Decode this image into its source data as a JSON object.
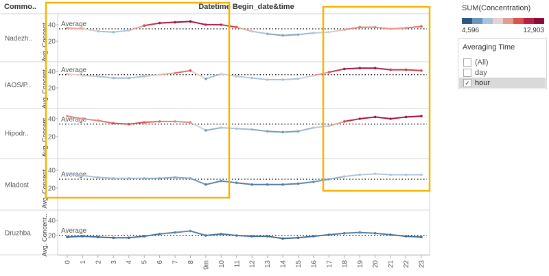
{
  "header": {
    "row_dim": "Commo..",
    "col_title": "Datetime Begin_date&time",
    "y_axis_title": "Avg. Concent..",
    "reference_label": "Average"
  },
  "x_tick_labels": [
    "0",
    "1",
    "2",
    "3",
    "4",
    "5",
    "6",
    "7",
    "8",
    "9m",
    "10",
    "11",
    "12",
    "13",
    "14",
    "15",
    "16",
    "17",
    "18",
    "19",
    "20",
    "21",
    "22",
    "23"
  ],
  "legend": {
    "title": "SUM(Concentration)",
    "min_label": "4,596",
    "max_label": "12,903",
    "ramp_colors": [
      "#2a5783",
      "#6b95b8",
      "#a9c3d9",
      "#e6d2cf",
      "#e59a8f",
      "#e04f4b",
      "#b81f45",
      "#8b0b38"
    ]
  },
  "filter": {
    "title": "Averaging Time",
    "options": [
      {
        "label": "(All)",
        "checked": false
      },
      {
        "label": "day",
        "checked": false
      },
      {
        "label": "hour",
        "checked": true
      }
    ]
  },
  "chart_data": {
    "type": "line",
    "x_label": "Datetime Begin_date&time",
    "y_label": "Avg. Concent..",
    "categories": [
      "0",
      "1",
      "2",
      "3",
      "4",
      "5",
      "6",
      "7",
      "8",
      "9m",
      "10",
      "11",
      "12",
      "13",
      "14",
      "15",
      "16",
      "17",
      "18",
      "19",
      "20",
      "21",
      "22",
      "23"
    ],
    "ylim": [
      0,
      50
    ],
    "y_ticks": [
      20,
      40
    ],
    "reference_line": "Average",
    "panels": [
      {
        "name": "Nadezh..",
        "average": 35,
        "values": [
          36,
          35,
          32,
          31,
          33,
          39,
          42,
          43,
          44,
          40,
          40,
          37,
          32,
          29,
          27,
          28,
          30,
          31,
          34,
          37,
          37,
          35,
          36,
          38
        ],
        "color_values": [
          0.55,
          0.5,
          0.3,
          0.25,
          0.35,
          0.75,
          0.9,
          0.95,
          1.0,
          0.85,
          0.85,
          0.7,
          0.35,
          0.22,
          0.18,
          0.2,
          0.3,
          0.4,
          0.55,
          0.65,
          0.6,
          0.55,
          0.6,
          0.7
        ]
      },
      {
        "name": "IAOS/P..",
        "average": 36,
        "values": [
          37,
          35,
          34,
          32,
          32,
          34,
          36,
          38,
          41,
          31,
          37,
          34,
          32,
          30,
          30,
          31,
          35,
          39,
          43,
          44,
          44,
          42,
          42,
          41
        ],
        "color_values": [
          0.45,
          0.4,
          0.3,
          0.25,
          0.25,
          0.3,
          0.45,
          0.6,
          0.75,
          0.15,
          0.4,
          0.35,
          0.3,
          0.28,
          0.28,
          0.3,
          0.45,
          0.7,
          0.9,
          0.95,
          0.95,
          0.8,
          0.8,
          0.75
        ]
      },
      {
        "name": "Hipodr..",
        "average": 34,
        "values": [
          43,
          40,
          38,
          35,
          34,
          36,
          37,
          37,
          36,
          27,
          30,
          29,
          28,
          26,
          25,
          26,
          30,
          32,
          37,
          40,
          42,
          40,
          42,
          43
        ],
        "color_values": [
          0.6,
          0.6,
          0.6,
          0.7,
          0.75,
          0.7,
          0.65,
          0.6,
          0.6,
          0.15,
          0.3,
          0.28,
          0.25,
          0.18,
          0.15,
          0.18,
          0.3,
          0.35,
          0.75,
          0.9,
          0.95,
          0.9,
          0.95,
          0.95
        ]
      },
      {
        "name": "Mladost",
        "average": 30,
        "values": [
          36,
          34,
          32,
          31,
          31,
          31,
          31,
          32,
          31,
          24,
          28,
          26,
          24,
          24,
          24,
          25,
          27,
          30,
          33,
          35,
          36,
          35,
          35,
          35
        ],
        "color_values": [
          0.3,
          0.3,
          0.28,
          0.28,
          0.28,
          0.25,
          0.22,
          0.22,
          0.22,
          0.08,
          0.12,
          0.1,
          0.08,
          0.08,
          0.08,
          0.1,
          0.12,
          0.18,
          0.3,
          0.3,
          0.32,
          0.3,
          0.3,
          0.3
        ]
      },
      {
        "name": "Druzhba",
        "average": 20,
        "values": [
          18,
          19,
          18,
          17,
          17,
          19,
          22,
          24,
          26,
          20,
          22,
          20,
          19,
          19,
          16,
          17,
          19,
          21,
          23,
          24,
          23,
          21,
          19,
          18
        ],
        "color_values": [
          0.05,
          0.06,
          0.05,
          0.04,
          0.04,
          0.06,
          0.08,
          0.1,
          0.12,
          0.06,
          0.08,
          0.06,
          0.05,
          0.05,
          0.03,
          0.04,
          0.05,
          0.07,
          0.09,
          0.1,
          0.09,
          0.07,
          0.05,
          0.05
        ]
      }
    ]
  }
}
